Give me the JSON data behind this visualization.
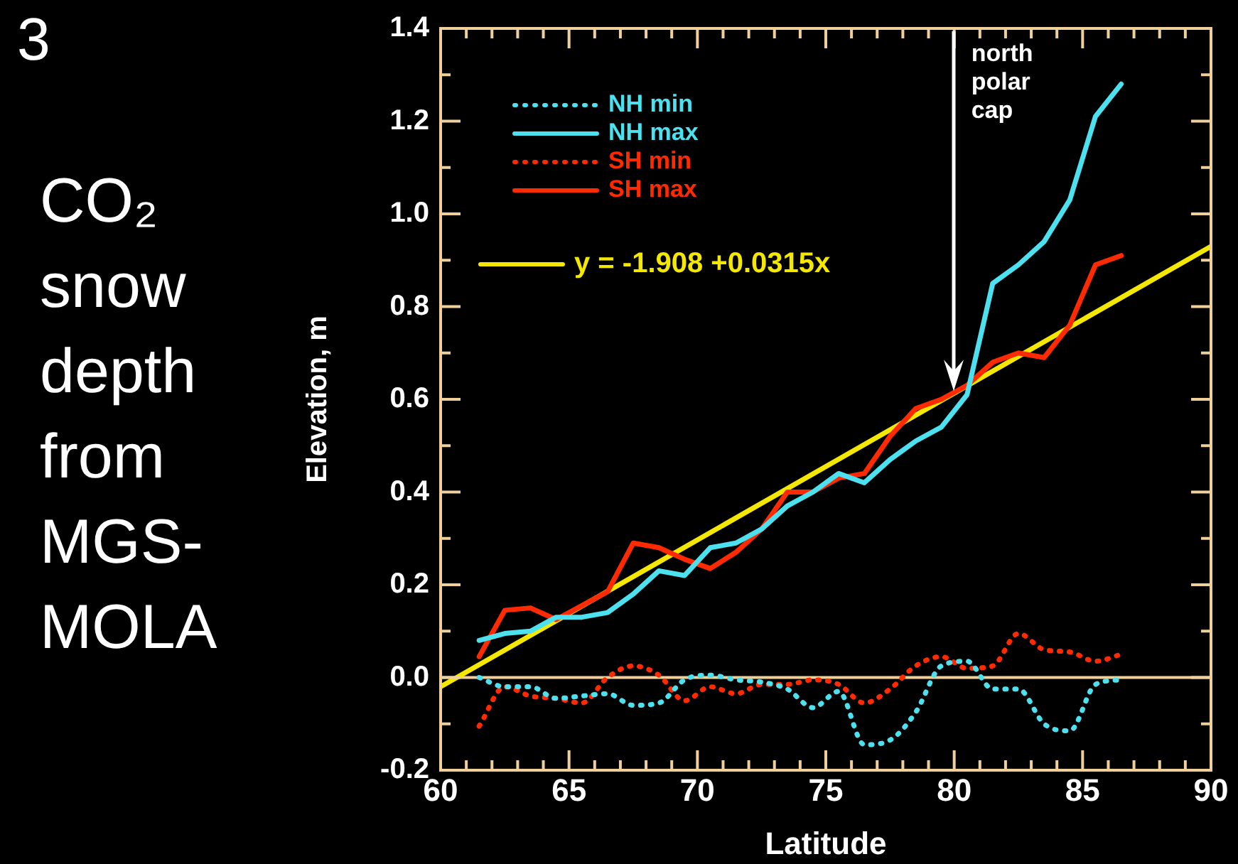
{
  "chart_data": {
    "type": "line",
    "title": "CO₂ snow depth from MGS-MOLA",
    "xlabel": "Latitude",
    "ylabel": "Elevation, m",
    "annotations": [
      "3"
    ],
    "x": [
      61.5,
      62.5,
      63.5,
      64.5,
      65.5,
      66.5,
      67.5,
      68.5,
      69.5,
      70.5,
      71.5,
      72.5,
      73.5,
      74.5,
      75.5,
      76.5,
      77.5,
      78.5,
      79.5,
      80.5,
      81.5,
      82.5,
      83.5,
      84.5,
      85.5,
      86.5
    ],
    "series": [
      {
        "name": "NH min",
        "color": "#4de0ee",
        "line_style": "dotted",
        "values": [
          0.0,
          -0.02,
          -0.02,
          -0.045,
          -0.04,
          -0.035,
          -0.06,
          -0.055,
          -0.005,
          0.005,
          -0.005,
          -0.01,
          -0.025,
          -0.065,
          -0.03,
          -0.145,
          -0.135,
          -0.075,
          0.025,
          0.035,
          -0.025,
          -0.025,
          -0.1,
          -0.115,
          -0.015,
          -0.005
        ]
      },
      {
        "name": "NH max",
        "color": "#4de0ee",
        "line_style": "solid",
        "values": [
          0.08,
          0.095,
          0.1,
          0.13,
          0.13,
          0.14,
          0.18,
          0.23,
          0.22,
          0.28,
          0.29,
          0.32,
          0.37,
          0.4,
          0.44,
          0.42,
          0.47,
          0.51,
          0.54,
          0.61,
          0.85,
          0.89,
          0.94,
          1.03,
          1.21,
          1.28
        ]
      },
      {
        "name": "SH min",
        "color": "#ff2a00",
        "line_style": "dotted",
        "values": [
          -0.105,
          -0.02,
          -0.04,
          -0.045,
          -0.055,
          0.0,
          0.025,
          0.005,
          -0.05,
          -0.02,
          -0.035,
          -0.015,
          -0.015,
          -0.005,
          -0.015,
          -0.055,
          -0.025,
          0.025,
          0.045,
          0.02,
          0.025,
          0.095,
          0.06,
          0.055,
          0.035,
          0.05
        ]
      },
      {
        "name": "SH max",
        "color": "#ff2a00",
        "line_style": "solid",
        "values": [
          0.045,
          0.145,
          0.15,
          0.125,
          0.155,
          0.185,
          0.29,
          0.28,
          0.255,
          0.235,
          0.27,
          0.32,
          0.4,
          0.4,
          0.43,
          0.44,
          0.52,
          0.58,
          0.6,
          0.63,
          0.68,
          0.7,
          0.69,
          0.76,
          0.89,
          0.91
        ]
      },
      {
        "name": "y = -1.908 +0.0315x",
        "color": "#f5e800",
        "line_style": "solid",
        "x": [
          60,
          90
        ],
        "values": [
          -0.02,
          0.93
        ]
      }
    ],
    "ref_lines": [
      {
        "axis": "y",
        "value": 0,
        "color": "#f0d09a"
      },
      {
        "axis": "x",
        "value": 80,
        "label": "north polar cap",
        "color": "#ffffff"
      }
    ],
    "xlim": [
      60,
      90
    ],
    "xticks": [
      60,
      {
        "value": 61,
        "label": null
      },
      {
        "value": 62,
        "label": null
      },
      {
        "value": 63,
        "label": null
      },
      {
        "value": 64,
        "label": null
      },
      65,
      {
        "value": 66,
        "label": null
      },
      {
        "value": 67,
        "label": null
      },
      {
        "value": 68,
        "label": null
      },
      {
        "value": 69,
        "label": null
      },
      70,
      {
        "value": 71,
        "label": null
      },
      {
        "value": 72,
        "label": null
      },
      {
        "value": 73,
        "label": null
      },
      {
        "value": 74,
        "label": null
      },
      75,
      {
        "value": 76,
        "label": null
      },
      {
        "value": 77,
        "label": null
      },
      {
        "value": 78,
        "label": null
      },
      {
        "value": 79,
        "label": null
      },
      80,
      {
        "value": 81,
        "label": null
      },
      {
        "value": 82,
        "label": null
      },
      {
        "value": 83,
        "label": null
      },
      {
        "value": 84,
        "label": null
      },
      85,
      {
        "value": 86,
        "label": null
      },
      {
        "value": 87,
        "label": null
      },
      {
        "value": 88,
        "label": null
      },
      {
        "value": 89,
        "label": null
      },
      90
    ],
    "ylim": [
      -0.2,
      1.4
    ],
    "yticks": [
      -0.2,
      {
        "value": -0.1,
        "label": null
      },
      {
        "value": 0,
        "label": "0.0"
      },
      {
        "value": 0.1,
        "label": null
      },
      0.2,
      {
        "value": 0.3,
        "label": null
      },
      0.4,
      {
        "value": 0.5,
        "label": null
      },
      0.6,
      {
        "value": 0.7,
        "label": null
      },
      0.8,
      {
        "value": 0.9,
        "label": null
      },
      {
        "value": 1,
        "label": "1.0"
      },
      {
        "value": 1.1,
        "label": null
      },
      1.2,
      {
        "value": 1.3,
        "label": null
      },
      1.4
    ],
    "grid": false,
    "legend": "top left",
    "marker": "none"
  }
}
